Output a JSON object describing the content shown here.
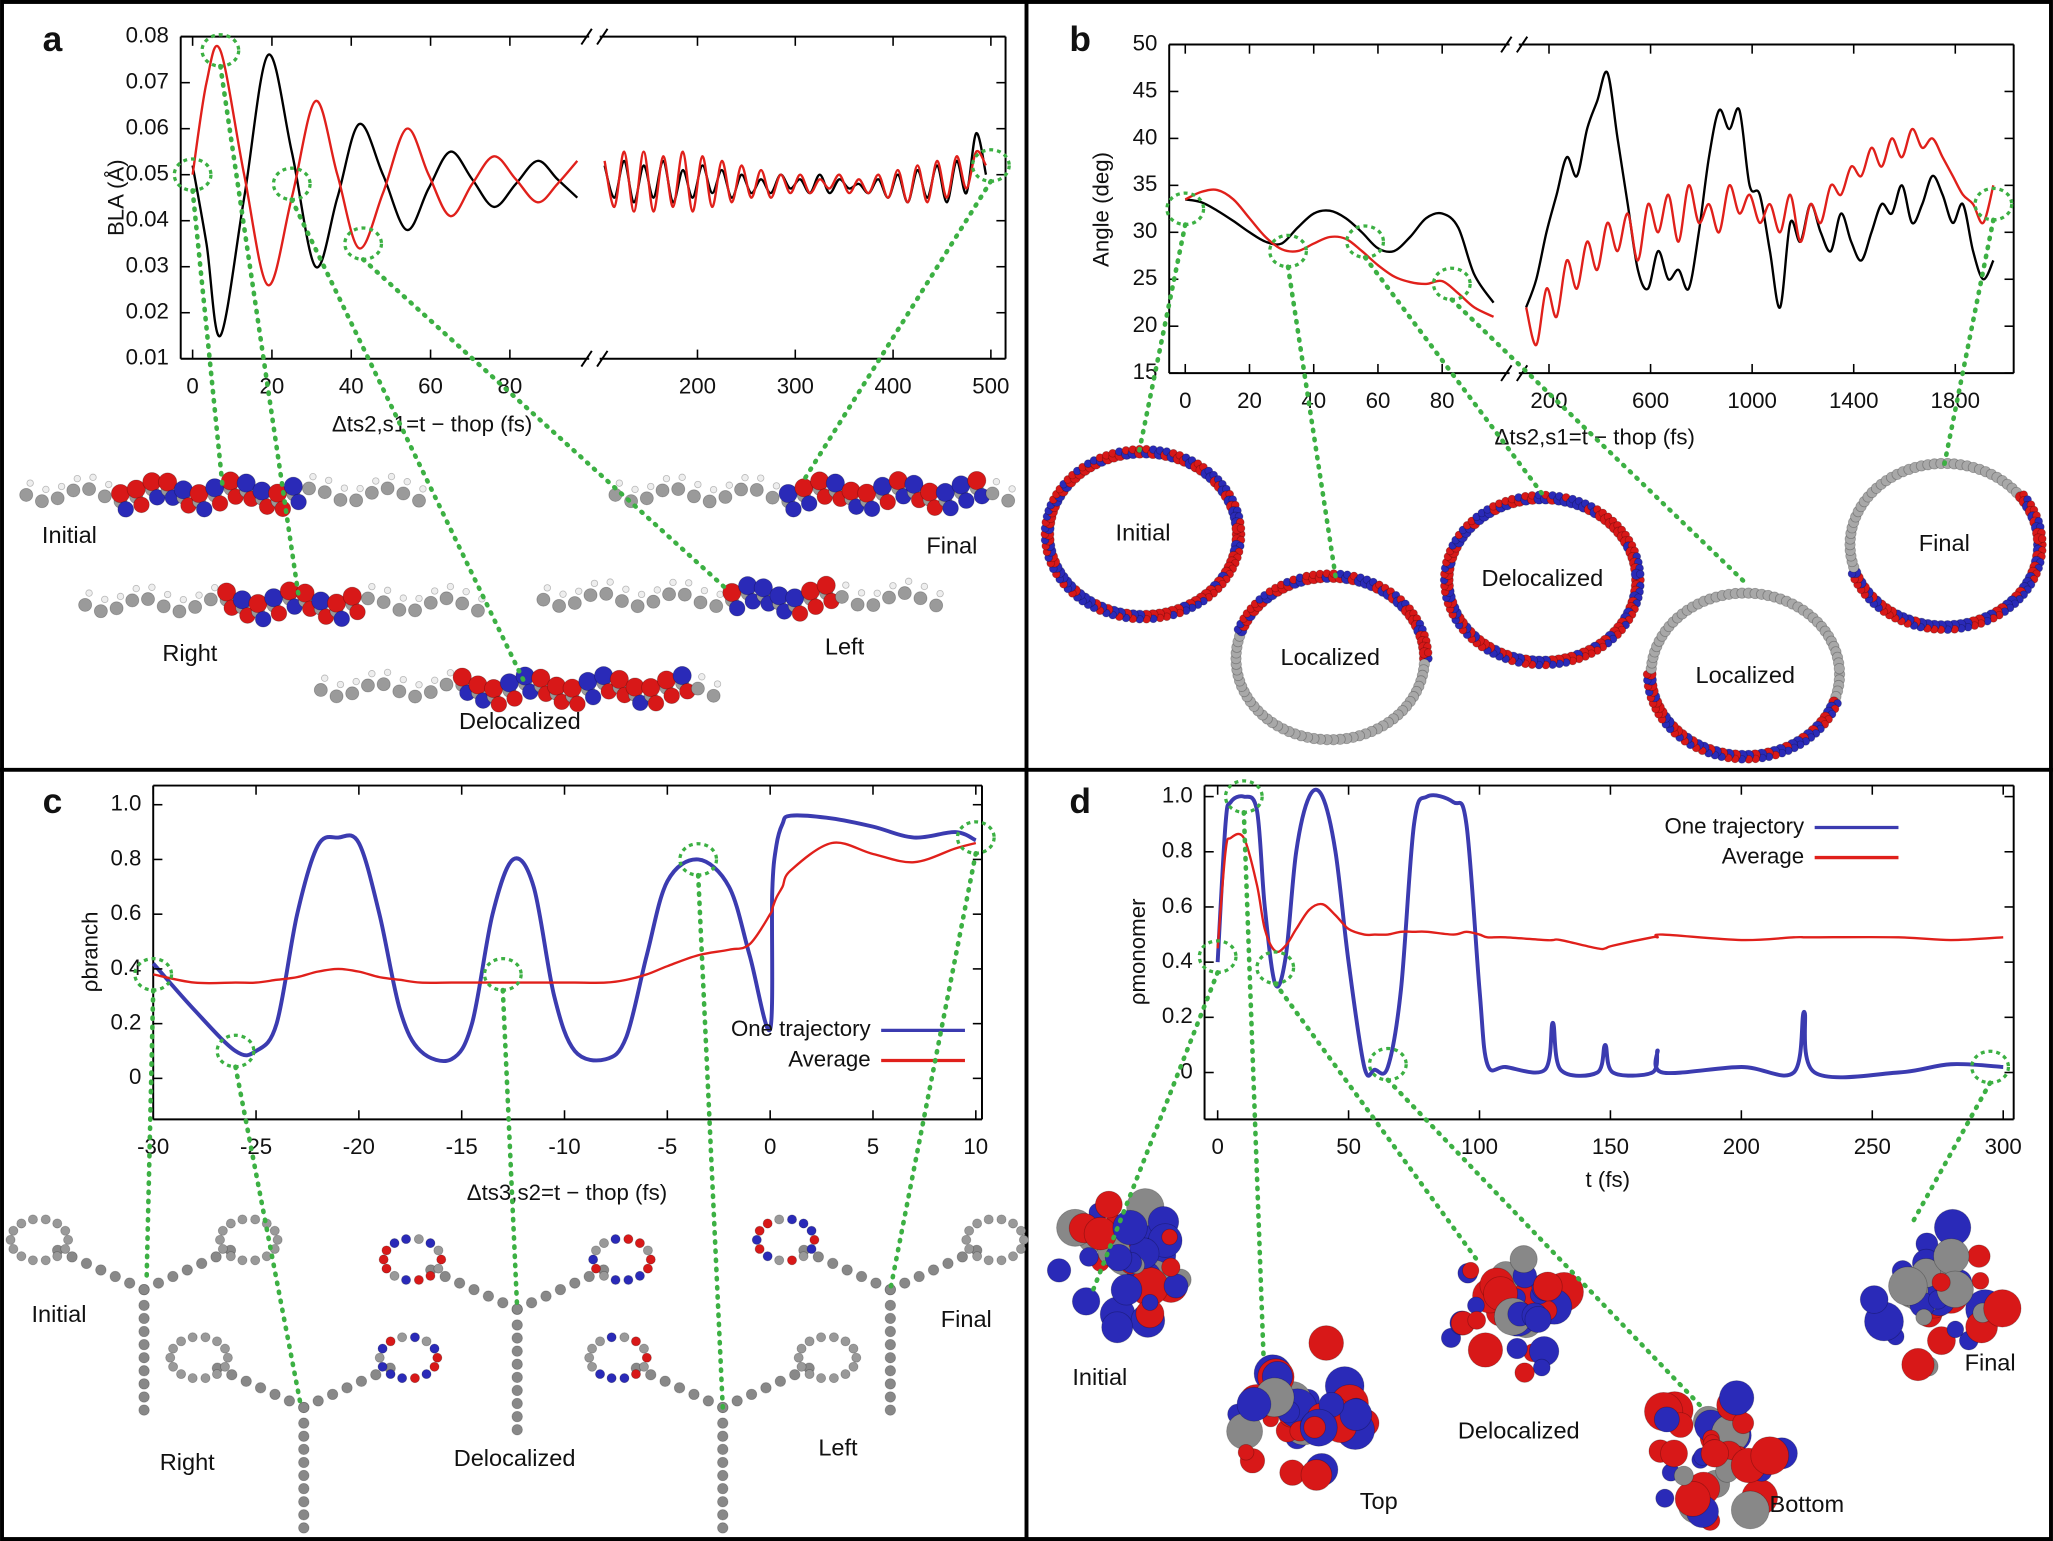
{
  "chart_data": [
    {
      "type": "line",
      "panel": "a",
      "ylabel": "BLA (Å)",
      "xlabel": "Δts2,s1=t − thop (fs)",
      "ylim": [
        0.01,
        0.08
      ],
      "yticks": [
        0.01,
        0.02,
        0.03,
        0.04,
        0.05,
        0.06,
        0.07,
        0.08
      ],
      "segments": [
        {
          "xlim": [
            -3,
            100
          ],
          "xticks": [
            0,
            20,
            40,
            60,
            80
          ],
          "x": [
            0,
            3.5,
            7,
            13,
            19,
            25,
            31,
            36.5,
            42,
            48,
            54,
            59.5,
            65,
            70.5,
            76,
            81.5,
            87,
            92,
            97
          ],
          "series": [
            {
              "color": "#000000",
              "values": [
                0.052,
                0.035,
                0.015,
                0.045,
                0.076,
                0.055,
                0.03,
                0.045,
                0.061,
                0.05,
                0.038,
                0.047,
                0.055,
                0.049,
                0.043,
                0.048,
                0.053,
                0.049,
                0.045
              ]
            },
            {
              "color": "#e0201b",
              "values": [
                0.05,
                0.07,
                0.077,
                0.05,
                0.026,
                0.045,
                0.066,
                0.05,
                0.034,
                0.046,
                0.06,
                0.05,
                0.041,
                0.048,
                0.054,
                0.049,
                0.044,
                0.048,
                0.053
              ]
            }
          ]
        },
        {
          "xlim": [
            100,
            515
          ],
          "xticks": [
            200,
            300,
            400,
            500
          ],
          "x": [
            105,
            115,
            125,
            135,
            145,
            155,
            165,
            175,
            185,
            195,
            205,
            215,
            225,
            235,
            245,
            255,
            265,
            275,
            285,
            295,
            305,
            315,
            325,
            335,
            345,
            355,
            365,
            375,
            385,
            395,
            405,
            415,
            425,
            435,
            445,
            455,
            465,
            475,
            485,
            495
          ],
          "series": [
            {
              "color": "#000000",
              "values": [
                0.052,
                0.045,
                0.053,
                0.044,
                0.052,
                0.045,
                0.053,
                0.044,
                0.051,
                0.045,
                0.052,
                0.046,
                0.051,
                0.045,
                0.05,
                0.046,
                0.049,
                0.046,
                0.05,
                0.047,
                0.049,
                0.046,
                0.05,
                0.046,
                0.049,
                0.047,
                0.048,
                0.046,
                0.049,
                0.045,
                0.05,
                0.044,
                0.051,
                0.045,
                0.052,
                0.044,
                0.053,
                0.046,
                0.059,
                0.05
              ]
            },
            {
              "color": "#e0201b",
              "values": [
                0.053,
                0.043,
                0.055,
                0.042,
                0.055,
                0.042,
                0.054,
                0.043,
                0.055,
                0.042,
                0.054,
                0.043,
                0.053,
                0.044,
                0.052,
                0.045,
                0.051,
                0.045,
                0.05,
                0.046,
                0.05,
                0.046,
                0.049,
                0.047,
                0.05,
                0.046,
                0.049,
                0.046,
                0.05,
                0.045,
                0.051,
                0.044,
                0.052,
                0.044,
                0.053,
                0.045,
                0.054,
                0.047,
                0.055,
                0.052
              ]
            }
          ]
        }
      ],
      "annotations": [
        {
          "text": "Initial",
          "x": 0,
          "y": 0.05
        },
        {
          "text": "Right",
          "x": 7,
          "y": 0.077
        },
        {
          "text": "Delocalized",
          "x": 25,
          "y": 0.048
        },
        {
          "text": "Left",
          "x": 43,
          "y": 0.035
        },
        {
          "text": "Final",
          "x": 500,
          "y": 0.052
        }
      ]
    },
    {
      "type": "line",
      "panel": "b",
      "ylabel": "Angle (deg)",
      "xlabel": "Δts2,s1=t − thop (fs)",
      "ylim": [
        15,
        50
      ],
      "yticks": [
        15,
        20,
        25,
        30,
        35,
        40,
        45,
        50
      ],
      "segments": [
        {
          "xlim": [
            -5,
            101
          ],
          "xticks": [
            0,
            20,
            40,
            60,
            80
          ],
          "x": [
            0,
            5,
            10,
            15,
            20,
            25,
            30,
            35,
            40,
            45,
            50,
            55,
            60,
            65,
            70,
            75,
            80,
            85,
            90,
            96
          ],
          "series": [
            {
              "color": "#000000",
              "values": [
                33.5,
                33.2,
                32.3,
                31.2,
                30,
                29,
                28.8,
                30.5,
                32,
                32.3,
                31.5,
                30,
                28.3,
                28,
                29.5,
                31.5,
                32,
                30.5,
                25.5,
                22.5
              ]
            },
            {
              "color": "#e0201b",
              "values": [
                33.5,
                34.3,
                34.5,
                33.5,
                31.5,
                29.5,
                28.2,
                28,
                28.8,
                29.5,
                29.3,
                28,
                26.5,
                25.3,
                24.7,
                24.5,
                24.8,
                23.5,
                22,
                21
              ]
            }
          ]
        },
        {
          "xlim": [
            81,
            2030
          ],
          "xticks": [
            200,
            600,
            1000,
            1400,
            1800
          ],
          "x": [
            110,
            150,
            190,
            230,
            270,
            310,
            350,
            390,
            430,
            470,
            510,
            550,
            590,
            630,
            670,
            710,
            750,
            790,
            830,
            870,
            910,
            950,
            990,
            1030,
            1070,
            1110,
            1150,
            1190,
            1230,
            1270,
            1310,
            1350,
            1390,
            1430,
            1470,
            1510,
            1550,
            1590,
            1630,
            1670,
            1710,
            1750,
            1790,
            1830,
            1870,
            1910,
            1950
          ],
          "series": [
            {
              "color": "#000000",
              "values": [
                22,
                25,
                30,
                34,
                38,
                36,
                41,
                44,
                47,
                40,
                33,
                26,
                24,
                28,
                25,
                26,
                24,
                30,
                38,
                43,
                41,
                43,
                35,
                34,
                28,
                22,
                31,
                29,
                33,
                30,
                28,
                32,
                29,
                27,
                30,
                33,
                32,
                35,
                31,
                33,
                36,
                34,
                31,
                33,
                28,
                25,
                27
              ]
            },
            {
              "color": "#e0201b",
              "values": [
                22,
                18,
                24,
                21,
                27,
                24,
                29,
                26,
                31,
                28,
                32,
                27,
                33,
                30,
                34,
                29,
                35,
                31,
                33,
                30,
                35,
                32,
                34,
                31,
                33,
                30,
                34,
                29,
                33,
                31,
                35,
                34,
                37,
                36,
                39,
                37,
                40,
                38,
                41,
                39,
                40,
                38,
                36,
                34,
                33,
                31,
                35
              ]
            }
          ]
        }
      ],
      "annotations": [
        {
          "text": "Initial",
          "x": 0,
          "y": 32.5
        },
        {
          "text": "Localized",
          "x": 32,
          "y": 28
        },
        {
          "text": "Delocalized",
          "x": 56,
          "y": 29
        },
        {
          "text": "Localized",
          "x": 83,
          "y": 24.5
        },
        {
          "text": "Final",
          "x": 1950,
          "y": 33
        }
      ]
    },
    {
      "type": "line",
      "panel": "c",
      "ylabel": "ρbranch",
      "xlabel": "Δts3,s2=t − thop (fs)",
      "ylim": [
        -0.15,
        1.07
      ],
      "yticks": [
        0,
        0.2,
        0.4,
        0.6,
        0.8,
        {
          "value": 1,
          "label": "1.0"
        }
      ],
      "xlim": [
        -30,
        10.3
      ],
      "xticks": [
        -30,
        -25,
        -20,
        -15,
        -10,
        -5,
        0,
        5,
        10
      ],
      "legend": "lower right",
      "x": [
        -30,
        -28,
        -26,
        -25,
        -24,
        -23,
        -22,
        -21,
        -20,
        -19,
        -18,
        -17,
        -15.5,
        -14.5,
        -13.5,
        -12.5,
        -11.5,
        -10.5,
        -9.5,
        -8,
        -7,
        -6,
        -5,
        -3.5,
        -2,
        -1,
        0,
        0.1,
        0.3,
        0.6,
        1,
        3,
        5,
        7,
        9,
        10
      ],
      "series": [
        {
          "name": "One trajectory",
          "color": "#3b3bb0",
          "values": [
            0.42,
            0.25,
            0.1,
            0.1,
            0.2,
            0.6,
            0.85,
            0.88,
            0.86,
            0.6,
            0.25,
            0.1,
            0.07,
            0.2,
            0.6,
            0.8,
            0.7,
            0.3,
            0.1,
            0.07,
            0.15,
            0.45,
            0.72,
            0.8,
            0.7,
            0.45,
            0.18,
            0.68,
            0.85,
            0.93,
            0.96,
            0.95,
            0.92,
            0.88,
            0.9,
            0.87
          ]
        },
        {
          "name": "Average",
          "color": "#e0201b",
          "values": [
            0.38,
            0.35,
            0.35,
            0.35,
            0.36,
            0.37,
            0.39,
            0.4,
            0.39,
            0.37,
            0.36,
            0.35,
            0.35,
            0.35,
            0.35,
            0.35,
            0.35,
            0.35,
            0.35,
            0.35,
            0.36,
            0.38,
            0.41,
            0.45,
            0.47,
            0.49,
            0.6,
            0.62,
            0.66,
            0.7,
            0.76,
            0.86,
            0.82,
            0.79,
            0.84,
            0.86
          ]
        }
      ],
      "annotations": [
        {
          "text": "Initial",
          "x": -30,
          "y": 0.38
        },
        {
          "text": "Right",
          "x": -26,
          "y": 0.1
        },
        {
          "text": "Delocalized",
          "x": -13,
          "y": 0.38
        },
        {
          "text": "Left",
          "x": -3.5,
          "y": 0.8
        },
        {
          "text": "Final",
          "x": 10,
          "y": 0.88
        }
      ]
    },
    {
      "type": "line",
      "panel": "d",
      "ylabel": "ρmonomer",
      "xlabel": "t (fs)",
      "ylim": [
        -0.17,
        1.04
      ],
      "yticks": [
        0,
        0.2,
        0.4,
        0.6,
        0.8,
        {
          "value": 1,
          "label": "1.0"
        }
      ],
      "xlim": [
        -5,
        304
      ],
      "xticks": [
        0,
        50,
        100,
        150,
        200,
        250,
        300
      ],
      "legend": "upper right",
      "x": [
        0,
        3,
        5,
        10,
        15,
        18,
        22,
        26,
        30,
        35,
        40,
        45,
        50,
        56,
        60,
        65,
        70,
        75,
        80,
        90,
        95,
        100,
        103,
        110,
        125,
        128,
        131,
        145,
        148,
        151,
        166,
        168,
        170,
        200,
        220,
        224,
        228,
        260,
        280,
        300
      ],
      "series": [
        {
          "name": "One trajectory",
          "color": "#3b3bb0",
          "values": [
            0.4,
            0.9,
            0.98,
            1.0,
            0.95,
            0.6,
            0.32,
            0.42,
            0.8,
            1.0,
            1.0,
            0.8,
            0.4,
            0.02,
            0.01,
            0.02,
            0.3,
            0.9,
            1.0,
            0.98,
            0.9,
            0.3,
            0.03,
            0.02,
            0.01,
            0.18,
            0.01,
            0.0,
            0.1,
            0.0,
            0.0,
            0.08,
            0.0,
            0.02,
            0.0,
            0.22,
            0.0,
            0.0,
            0.03,
            0.02
          ]
        },
        {
          "name": "Average",
          "color": "#e0201b",
          "values": [
            0.45,
            0.8,
            0.85,
            0.85,
            0.68,
            0.52,
            0.44,
            0.46,
            0.52,
            0.59,
            0.61,
            0.57,
            0.52,
            0.5,
            0.5,
            0.5,
            0.51,
            0.51,
            0.51,
            0.5,
            0.51,
            0.5,
            0.49,
            0.49,
            0.48,
            0.48,
            0.48,
            0.45,
            0.45,
            0.46,
            0.49,
            0.49,
            0.5,
            0.48,
            0.49,
            0.49,
            0.49,
            0.49,
            0.48,
            0.49
          ]
        }
      ],
      "annotations": [
        {
          "text": "Initial",
          "x": 0,
          "y": 0.42
        },
        {
          "text": "Top",
          "x": 10,
          "y": 1.0
        },
        {
          "text": "Delocalized",
          "x": 22,
          "y": 0.38
        },
        {
          "text": "Bottom",
          "x": 65,
          "y": 0.03
        },
        {
          "text": "Final",
          "x": 295,
          "y": 0.02
        }
      ]
    }
  ]
}
